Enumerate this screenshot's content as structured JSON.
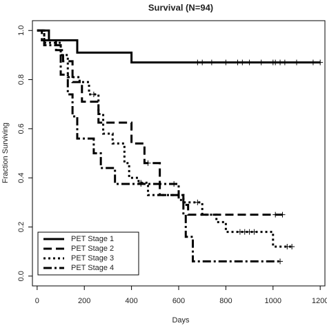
{
  "chart_data": {
    "type": "step",
    "title": "Survival (N=94)",
    "xlabel": "Days",
    "ylabel": "Fraction Surviving",
    "xlim": [
      -20,
      1220
    ],
    "ylim": [
      -0.04,
      1.04
    ],
    "xticks": [
      0,
      200,
      400,
      600,
      800,
      1000,
      1200
    ],
    "yticks": [
      {
        "value": 0,
        "label": "0.0"
      },
      0.2,
      0.4,
      0.6,
      0.8,
      {
        "value": 1,
        "label": "1.0"
      }
    ],
    "legend": "bottomleft",
    "series": [
      {
        "name": "PET Stage 1",
        "color": "#000000",
        "dash": "none",
        "x": [
          0,
          50,
          170,
          400
        ],
        "values": [
          1.0,
          0.96,
          0.91,
          0.87
        ],
        "censor_x": [
          680,
          700,
          740,
          800,
          850,
          870,
          900,
          950,
          1000,
          1010,
          1030,
          1050,
          1100,
          1170,
          1200
        ]
      },
      {
        "name": "PET Stage 2",
        "color": "#000000",
        "dash": "12,6",
        "x": [
          0,
          20,
          80,
          110,
          150,
          190,
          260,
          400,
          455,
          520,
          620,
          640
        ],
        "values": [
          1.0,
          0.96,
          0.92,
          0.875,
          0.79,
          0.71,
          0.625,
          0.54,
          0.46,
          0.33,
          0.29,
          0.25
        ],
        "censor_x": [
          470,
          1010,
          1040
        ]
      },
      {
        "name": "PET Stage 3",
        "color": "#000000",
        "dash": "3,4",
        "x": [
          0,
          30,
          100,
          130,
          180,
          220,
          260,
          280,
          320,
          370,
          390,
          430,
          470,
          620,
          700,
          760,
          800,
          1000
        ],
        "values": [
          1.0,
          0.95,
          0.9,
          0.81,
          0.79,
          0.74,
          0.66,
          0.58,
          0.54,
          0.46,
          0.4,
          0.38,
          0.33,
          0.3,
          0.25,
          0.22,
          0.18,
          0.12
        ],
        "censor_x": [
          240,
          440,
          680,
          860,
          880,
          900,
          920,
          1060,
          1080
        ]
      },
      {
        "name": "PET Stage 4",
        "color": "#000000",
        "dash": "12,4,3,4",
        "x": [
          0,
          30,
          100,
          130,
          150,
          170,
          240,
          270,
          330,
          600,
          620,
          630,
          660
        ],
        "values": [
          1.0,
          0.94,
          0.82,
          0.74,
          0.65,
          0.56,
          0.5,
          0.44,
          0.375,
          0.31,
          0.25,
          0.16,
          0.06
        ],
        "censor_x": [
          440,
          580,
          1030
        ]
      }
    ]
  }
}
